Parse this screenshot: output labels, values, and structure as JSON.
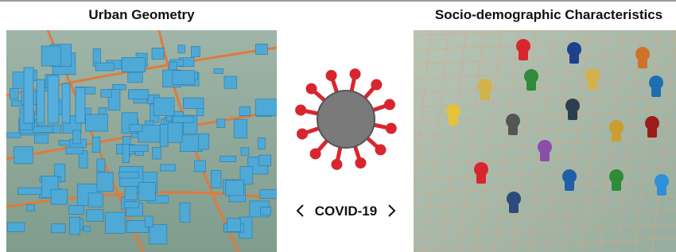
{
  "panels": [
    {
      "title": "Urban Geometry"
    },
    {
      "title": "Socio-demographic Characteristics"
    }
  ],
  "center": {
    "label": "COVID-19"
  }
}
